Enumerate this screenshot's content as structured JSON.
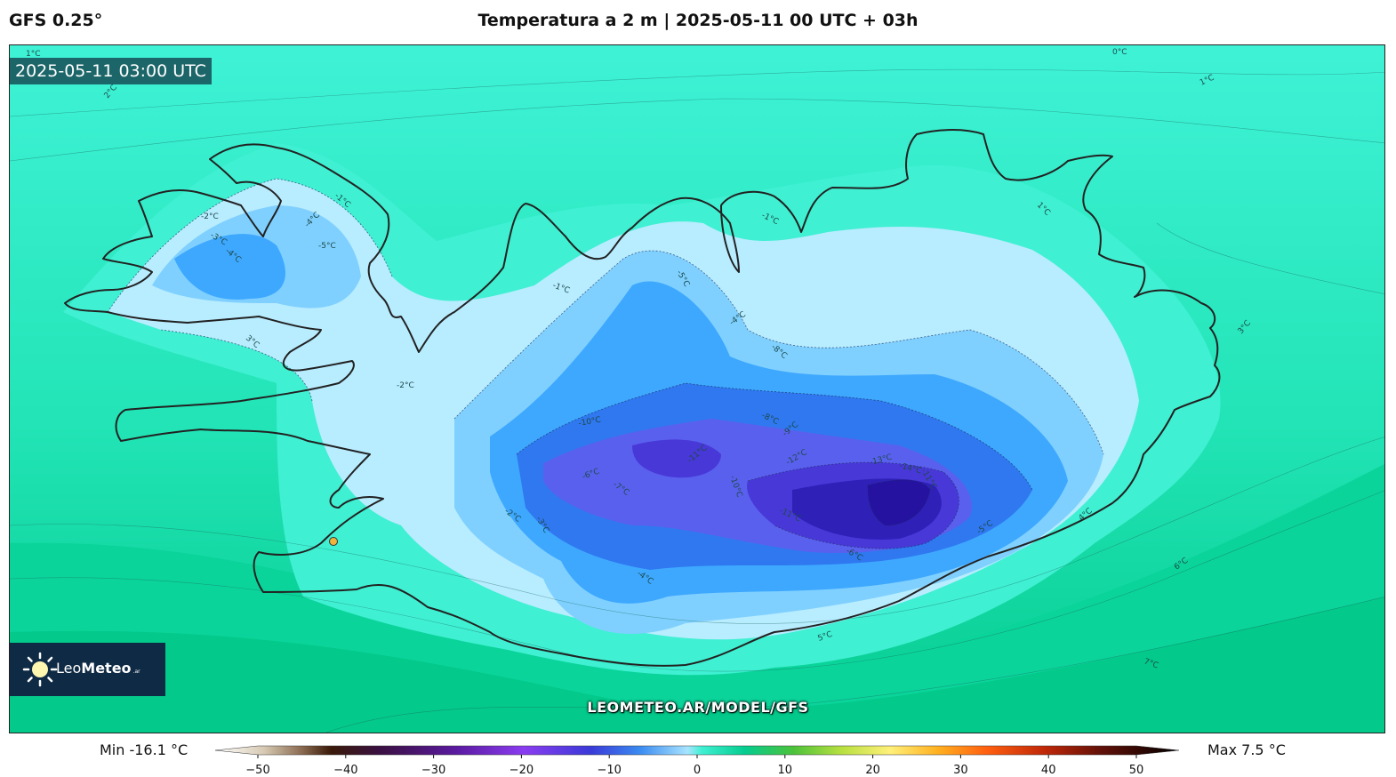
{
  "header": {
    "model": "GFS 0.25°",
    "title": "Temperatura a 2 m | 2025-05-11 00 UTC + 03h"
  },
  "map": {
    "valid_time": "2025-05-11 03:00 UTC",
    "contour_labels": [
      "0°C",
      "1°C",
      "2°C",
      "-1°C",
      "-2°C",
      "-3°C",
      "-4°C",
      "-5°C",
      "-6°C",
      "-7°C",
      "-8°C",
      "-9°C",
      "-10°C",
      "-11°C",
      "-12°C",
      "-13°C",
      "-14°C",
      "3°C",
      "4°C",
      "5°C",
      "6°C",
      "7°C"
    ],
    "site_marker_color": "#f0b43c",
    "watermark_url": "LEOMETEO.AR/MODEL/GFS"
  },
  "logo": {
    "icon": "sun-icon",
    "name_part1": "Leo",
    "name_part2": "Meteo",
    "suffix": ".ar"
  },
  "colorbar": {
    "min_label": "Min -16.1 °C",
    "max_label": "Max 7.5 °C",
    "ticks": [
      "−50",
      "−40",
      "−30",
      "−20",
      "−10",
      "0",
      "10",
      "20",
      "30",
      "40",
      "50"
    ],
    "range": [
      -50,
      50
    ],
    "unit": "°C"
  },
  "palette": {
    "sea_warm": "#05cc8f",
    "sea_mid": "#22e8b8",
    "near_zero": "#3ff0d2",
    "minus1": "#b8ecff",
    "minus3": "#7fd0ff",
    "minus5": "#3ea8ff",
    "minus7": "#2f78f0",
    "minus9": "#5a60ee",
    "minus11": "#4838d8",
    "minus13": "#2f20b8",
    "coast": "#222222"
  }
}
